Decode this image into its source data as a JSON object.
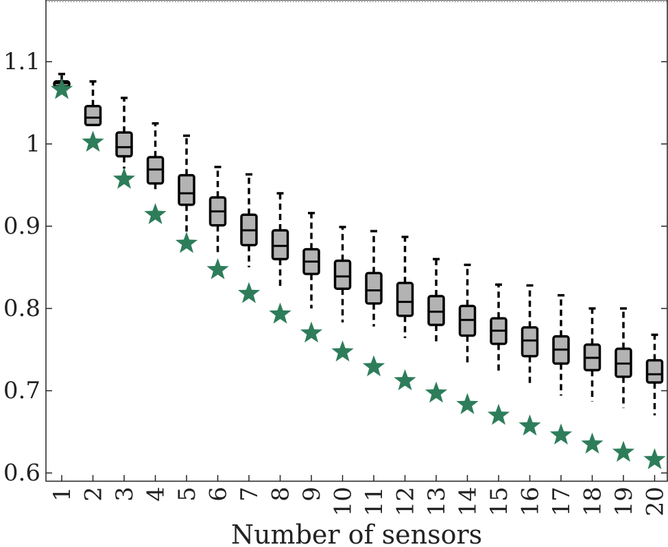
{
  "chart_data": {
    "type": "box",
    "xlabel": "Number of sensors",
    "ylabel": "",
    "ylim": [
      0.59,
      1.175
    ],
    "y_ticks": [
      0.6,
      0.7,
      0.8,
      0.9,
      1.0,
      1.1
    ],
    "y_tick_labels": [
      "0.6",
      "0.7",
      "0.8",
      "0.9",
      "1",
      "1.1"
    ],
    "categories": [
      "1",
      "2",
      "3",
      "4",
      "5",
      "6",
      "7",
      "8",
      "9",
      "10",
      "11",
      "12",
      "13",
      "14",
      "15",
      "16",
      "17",
      "18",
      "19",
      "20"
    ],
    "reference_line_y": 1.173,
    "box_series": {
      "fill": "#b3b3b3",
      "stroke": "#000000",
      "boxes": [
        {
          "whisker_low": 1.07,
          "q1": 1.07,
          "median": 1.074,
          "q3": 1.076,
          "whisker_high": 1.08,
          "max": 1.085
        },
        {
          "whisker_low": 1.022,
          "q1": 1.023,
          "median": 1.032,
          "q3": 1.046,
          "whisker_high": 1.058,
          "max": 1.076
        },
        {
          "whisker_low": 0.97,
          "q1": 0.985,
          "median": 0.996,
          "q3": 1.014,
          "whisker_high": 1.03,
          "max": 1.056
        },
        {
          "whisker_low": 0.945,
          "q1": 0.952,
          "median": 0.969,
          "q3": 0.984,
          "whisker_high": 1.0,
          "max": 1.025
        },
        {
          "whisker_low": 0.89,
          "q1": 0.926,
          "median": 0.94,
          "q3": 0.962,
          "whisker_high": 0.98,
          "max": 1.01
        },
        {
          "whisker_low": 0.865,
          "q1": 0.901,
          "median": 0.918,
          "q3": 0.935,
          "whisker_high": 0.95,
          "max": 0.972
        },
        {
          "whisker_low": 0.85,
          "q1": 0.877,
          "median": 0.895,
          "q3": 0.914,
          "whisker_high": 0.93,
          "max": 0.963
        },
        {
          "whisker_low": 0.825,
          "q1": 0.86,
          "median": 0.876,
          "q3": 0.895,
          "whisker_high": 0.91,
          "max": 0.94
        },
        {
          "whisker_low": 0.8,
          "q1": 0.842,
          "median": 0.857,
          "q3": 0.872,
          "whisker_high": 0.887,
          "max": 0.916
        },
        {
          "whisker_low": 0.783,
          "q1": 0.824,
          "median": 0.839,
          "q3": 0.858,
          "whisker_high": 0.872,
          "max": 0.899
        },
        {
          "whisker_low": 0.778,
          "q1": 0.806,
          "median": 0.822,
          "q3": 0.843,
          "whisker_high": 0.858,
          "max": 0.894
        },
        {
          "whisker_low": 0.764,
          "q1": 0.791,
          "median": 0.808,
          "q3": 0.831,
          "whisker_high": 0.847,
          "max": 0.887
        },
        {
          "whisker_low": 0.755,
          "q1": 0.78,
          "median": 0.796,
          "q3": 0.815,
          "whisker_high": 0.83,
          "max": 0.86
        },
        {
          "whisker_low": 0.732,
          "q1": 0.767,
          "median": 0.786,
          "q3": 0.803,
          "whisker_high": 0.817,
          "max": 0.853
        },
        {
          "whisker_low": 0.724,
          "q1": 0.757,
          "median": 0.773,
          "q3": 0.788,
          "whisker_high": 0.803,
          "max": 0.829
        },
        {
          "whisker_low": 0.708,
          "q1": 0.742,
          "median": 0.761,
          "q3": 0.777,
          "whisker_high": 0.79,
          "max": 0.828
        },
        {
          "whisker_low": 0.694,
          "q1": 0.733,
          "median": 0.75,
          "q3": 0.766,
          "whisker_high": 0.78,
          "max": 0.816
        },
        {
          "whisker_low": 0.687,
          "q1": 0.725,
          "median": 0.74,
          "q3": 0.756,
          "whisker_high": 0.77,
          "max": 0.8
        },
        {
          "whisker_low": 0.679,
          "q1": 0.717,
          "median": 0.733,
          "q3": 0.751,
          "whisker_high": 0.765,
          "max": 0.8
        },
        {
          "whisker_low": 0.67,
          "q1": 0.71,
          "median": 0.72,
          "q3": 0.737,
          "whisker_high": 0.75,
          "max": 0.768
        }
      ]
    },
    "star_series": {
      "color": "#2e7d5a",
      "values": [
        1.066,
        1.002,
        0.957,
        0.914,
        0.879,
        0.847,
        0.818,
        0.793,
        0.77,
        0.747,
        0.729,
        0.712,
        0.697,
        0.683,
        0.67,
        0.657,
        0.646,
        0.635,
        0.625,
        0.616
      ]
    }
  }
}
